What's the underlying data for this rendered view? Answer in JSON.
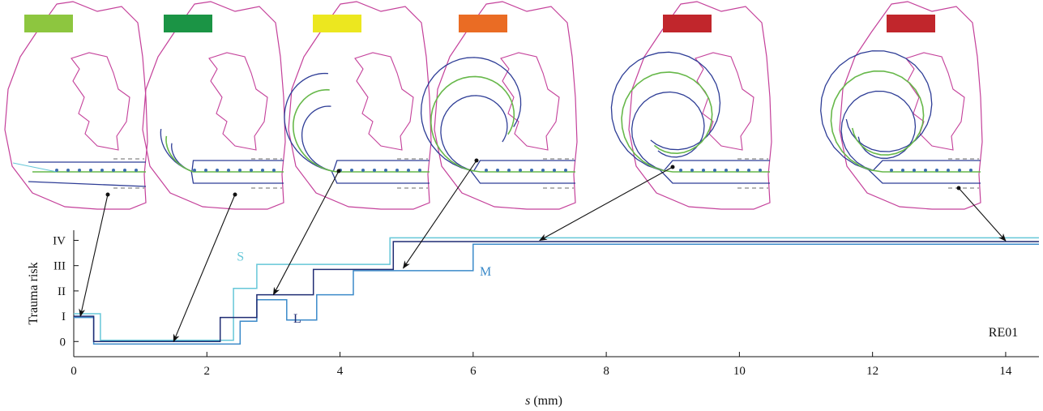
{
  "figure": {
    "id_label": "RE01"
  },
  "risk_colors": [
    "#8dc63f",
    "#1b9445",
    "#ece71f",
    "#ea6c24",
    "#c1262c",
    "#c1262c"
  ],
  "colors": {
    "cochlea": "#c4409a",
    "duct": "#2e3d96",
    "electrode": "#67b84a",
    "contact": "#3d6db0",
    "wire": "#66c7d8",
    "S": "#66c7d8",
    "M": "#3b8ac9",
    "L": "#1f2c73",
    "arrow": "#111111",
    "guide": "#888888"
  },
  "chart_data": {
    "type": "line",
    "step": true,
    "xlabel_var": "s",
    "xlabel_unit": " (mm)",
    "ylabel": "Trauma risk",
    "xlim": [
      0,
      14.5
    ],
    "ylim": [
      -0.6,
      4.4
    ],
    "x_ticks": [
      0,
      2,
      4,
      6,
      8,
      10,
      12,
      14
    ],
    "y_ticks": [
      {
        "v": 0,
        "label": "0"
      },
      {
        "v": 1,
        "label": "I"
      },
      {
        "v": 2,
        "label": "II"
      },
      {
        "v": 3,
        "label": "III"
      },
      {
        "v": 4,
        "label": "IV"
      }
    ],
    "series": [
      {
        "name": "S",
        "label_at": [
          2.45,
          3.2
        ],
        "points": [
          [
            0,
            1.1
          ],
          [
            0.4,
            1.1
          ],
          [
            0.4,
            0.05
          ],
          [
            2.4,
            0.05
          ],
          [
            2.4,
            1.05
          ],
          [
            2.4,
            2.1
          ],
          [
            2.75,
            2.1
          ],
          [
            2.75,
            3.05
          ],
          [
            4.75,
            3.05
          ],
          [
            4.75,
            4.1
          ],
          [
            14.5,
            4.1
          ]
        ]
      },
      {
        "name": "M",
        "label_at": [
          6.1,
          2.6
        ],
        "points": [
          [
            0,
            0.95
          ],
          [
            0.3,
            0.95
          ],
          [
            0.3,
            -0.1
          ],
          [
            2.5,
            -0.1
          ],
          [
            2.5,
            0.8
          ],
          [
            2.75,
            0.8
          ],
          [
            2.75,
            1.65
          ],
          [
            3.2,
            1.65
          ],
          [
            3.2,
            0.85
          ],
          [
            3.65,
            0.85
          ],
          [
            3.65,
            1.85
          ],
          [
            4.2,
            1.85
          ],
          [
            4.2,
            2.8
          ],
          [
            6.0,
            2.8
          ],
          [
            6.0,
            3.85
          ],
          [
            14.5,
            3.85
          ]
        ]
      },
      {
        "name": "L",
        "label_at": [
          3.3,
          0.75
        ],
        "points": [
          [
            0,
            1.0
          ],
          [
            0.3,
            1.0
          ],
          [
            0.3,
            0.0
          ],
          [
            2.2,
            0.0
          ],
          [
            2.2,
            0.95
          ],
          [
            2.75,
            0.95
          ],
          [
            2.75,
            1.85
          ],
          [
            3.6,
            1.85
          ],
          [
            3.6,
            2.85
          ],
          [
            4.8,
            2.85
          ],
          [
            4.8,
            3.95
          ],
          [
            14.5,
            3.95
          ]
        ]
      }
    ]
  },
  "callouts": [
    {
      "from": [
        133,
        240
      ],
      "to": [
        0.1,
        1.0
      ]
    },
    {
      "from": [
        290,
        240
      ],
      "to": [
        1.5,
        0.0
      ]
    },
    {
      "from": [
        418,
        211
      ],
      "to": [
        3.0,
        1.85
      ]
    },
    {
      "from": [
        588,
        198
      ],
      "to": [
        4.95,
        2.9
      ]
    },
    {
      "from": [
        830,
        206
      ],
      "to": [
        7.0,
        4.0
      ]
    },
    {
      "from": [
        1183,
        232
      ],
      "to": [
        14.0,
        3.98
      ]
    }
  ]
}
